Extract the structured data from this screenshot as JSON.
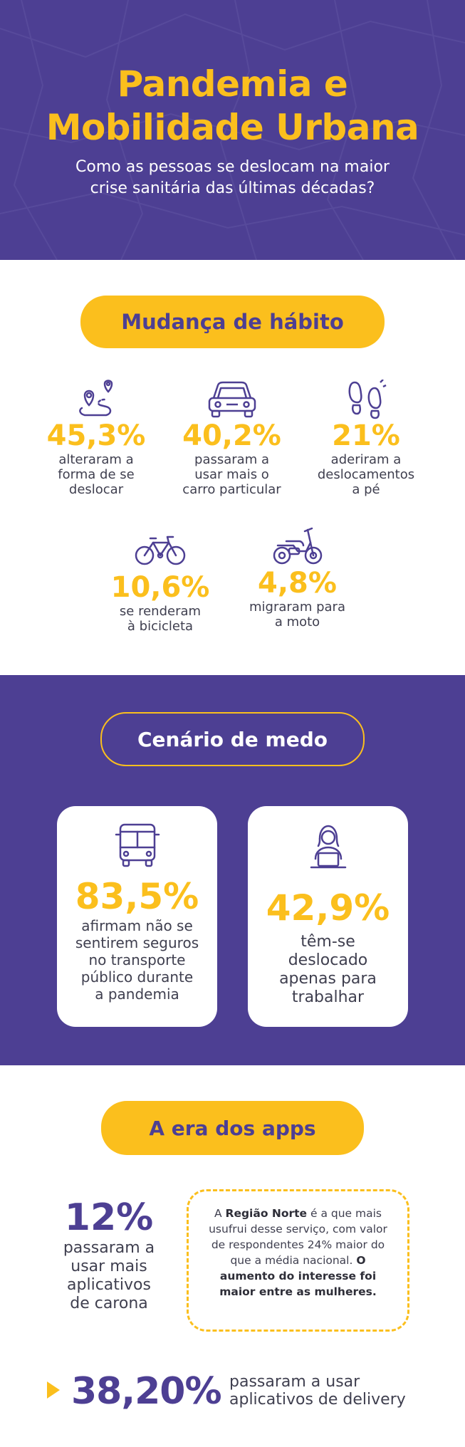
{
  "header": {
    "title_line1": "Pandemia e",
    "title_line2": "Mobilidade Urbana",
    "subtitle_line1": "Como as pessoas se deslocam na maior",
    "subtitle_line2": "crise sanitária das últimas décadas?"
  },
  "habit": {
    "heading": "Mudança de hábito",
    "stats": [
      {
        "icon": "route-pin-icon",
        "value": "45,3%",
        "lines": [
          "alteraram a",
          "forma de se",
          "deslocar"
        ]
      },
      {
        "icon": "car-icon",
        "value": "40,2%",
        "lines": [
          "passaram a",
          "usar mais o",
          "carro particular"
        ]
      },
      {
        "icon": "footprints-icon",
        "value": "21%",
        "lines": [
          "aderiram a",
          "deslocamentos",
          "a pé"
        ]
      },
      {
        "icon": "bicycle-icon",
        "value": "10,6%",
        "lines": [
          "se renderam",
          "à bicicleta"
        ]
      },
      {
        "icon": "motorcycle-icon",
        "value": "4,8%",
        "lines": [
          "migraram para",
          "a moto"
        ]
      }
    ]
  },
  "fear": {
    "heading": "Cenário de medo",
    "cards": [
      {
        "icon": "bus-icon",
        "value": "83,5%",
        "lines": [
          "afirmam não se",
          "sentirem seguros",
          "no transporte",
          "público durante",
          "a pandemia"
        ]
      },
      {
        "icon": "person-laptop-icon",
        "value": "42,9%",
        "lines": [
          "têm-se",
          "deslocado",
          "apenas para",
          "trabalhar"
        ]
      }
    ]
  },
  "apps": {
    "heading": "A era dos apps",
    "ride": {
      "value": "12%",
      "lines": [
        "passaram a",
        "usar mais",
        "aplicativos",
        "de carona"
      ]
    },
    "note": {
      "prefix": "A ",
      "region": "Região Norte",
      "middle": " é a que mais usufrui desse serviço, com valor de respondentes 24% maior do que a média nacional. ",
      "emphasis": "O aumento do interesse foi maior entre as mulheres."
    },
    "delivery": {
      "value": "38,20%",
      "lines": [
        "passaram a usar",
        "aplicativos de delivery"
      ]
    }
  },
  "colors": {
    "purple": "#4d3f93",
    "yellow": "#fbbf1d",
    "text": "#3f3f4f"
  }
}
